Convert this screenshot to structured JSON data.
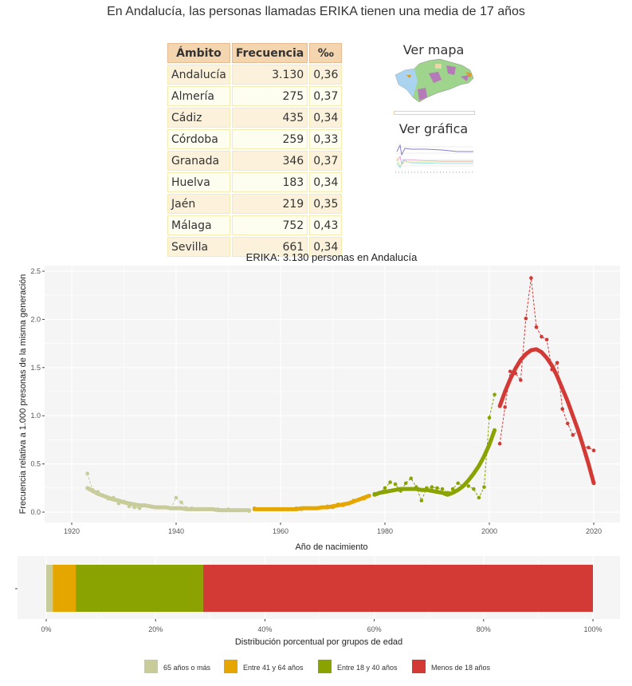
{
  "page": {
    "title": "En Andalucía, las personas llamadas ERIKA tienen una media de 17 años"
  },
  "table": {
    "headers": [
      "Ámbito",
      "Frecuencia",
      "‰"
    ],
    "rows": [
      [
        "Andalucía",
        "3.130",
        "0,36"
      ],
      [
        "Almería",
        "275",
        "0,37"
      ],
      [
        "Cádiz",
        "435",
        "0,34"
      ],
      [
        "Córdoba",
        "259",
        "0,33"
      ],
      [
        "Granada",
        "346",
        "0,37"
      ],
      [
        "Huelva",
        "183",
        "0,34"
      ],
      [
        "Jaén",
        "219",
        "0,35"
      ],
      [
        "Málaga",
        "752",
        "0,43"
      ],
      [
        "Sevilla",
        "661",
        "0,34"
      ]
    ]
  },
  "links": {
    "map_label": "Ver mapa",
    "chart_label": "Ver gráfica"
  },
  "chart_data": [
    {
      "type": "line",
      "title": "ERIKA: 3.130 personas en Andalucía",
      "xlabel": "Año de nacimiento",
      "ylabel": "Frecuencia relativa a 1.000 presonas de la misma generación",
      "xlim": [
        1914,
        2025
      ],
      "ylim": [
        -0.07,
        2.52
      ],
      "xticks": [
        1920,
        1940,
        1960,
        1980,
        2000,
        2020
      ],
      "yticks": [
        "0.0",
        "0.5",
        "1.0",
        "1.5",
        "2.0",
        "2.5"
      ],
      "grid": true,
      "start_year": 1923,
      "segments": [
        {
          "name": "65 años o más",
          "from": 1923,
          "to": 1954,
          "color": "#c8cc9a"
        },
        {
          "name": "Entre 41 y 64 años",
          "from": 1955,
          "to": 1977,
          "color": "#e5a600"
        },
        {
          "name": "Entre 18 y 40 años",
          "from": 1978,
          "to": 2001,
          "color": "#8aa300"
        },
        {
          "name": "Menos de 18 años",
          "from": 2002,
          "to": 2020,
          "color": "#d33a35"
        }
      ],
      "smooth": [
        0.25,
        0.22,
        0.19,
        0.17,
        0.15,
        0.13,
        0.12,
        0.1,
        0.09,
        0.08,
        0.07,
        0.07,
        0.06,
        0.05,
        0.05,
        0.05,
        0.04,
        0.04,
        0.04,
        0.03,
        0.03,
        0.03,
        0.03,
        0.03,
        0.03,
        0.02,
        0.02,
        0.02,
        0.02,
        0.02,
        0.02,
        0.02,
        0.03,
        0.03,
        0.03,
        0.03,
        0.03,
        0.03,
        0.03,
        0.03,
        0.03,
        0.04,
        0.04,
        0.04,
        0.04,
        0.05,
        0.05,
        0.06,
        0.07,
        0.08,
        0.09,
        0.11,
        0.13,
        0.15,
        0.17,
        0.18,
        0.2,
        0.21,
        0.22,
        0.23,
        0.24,
        0.24,
        0.24,
        0.24,
        0.23,
        0.23,
        0.22,
        0.21,
        0.2,
        0.18,
        0.2,
        0.23,
        0.27,
        0.33,
        0.4,
        0.48,
        0.58,
        0.7,
        0.85,
        1.1,
        1.25,
        1.38,
        1.49,
        1.58,
        1.64,
        1.68,
        1.69,
        1.66,
        1.6,
        1.52,
        1.41,
        1.28,
        1.15,
        1.0,
        0.85,
        0.68,
        0.5,
        0.3
      ],
      "observed": [
        0.4,
        0.23,
        0.21,
        0.17,
        0.14,
        0.15,
        0.09,
        0.11,
        0.06,
        0.05,
        0.04,
        0.07,
        0.06,
        0.05,
        0.05,
        0.05,
        0.04,
        0.15,
        0.1,
        0.04,
        0.04,
        0.03,
        0.03,
        0.03,
        0.03,
        0.03,
        0.02,
        0.03,
        0.02,
        0.02,
        0.02,
        0.01,
        0.04,
        0.03,
        0.03,
        0.03,
        0.03,
        0.03,
        0.03,
        0.03,
        0.04,
        0.03,
        0.04,
        0.04,
        0.04,
        0.05,
        0.06,
        0.05,
        0.08,
        0.07,
        0.09,
        0.12,
        0.13,
        0.14,
        0.17,
        0.19,
        0.2,
        0.25,
        0.31,
        0.29,
        0.22,
        0.3,
        0.35,
        0.26,
        0.12,
        0.25,
        0.26,
        0.25,
        0.24,
        0.2,
        0.24,
        0.3,
        0.27,
        0.27,
        0.24,
        0.15,
        0.26,
        0.98,
        1.22,
        0.71,
        1.09,
        1.46,
        1.44,
        1.37,
        2.01,
        2.43,
        1.92,
        1.82,
        1.79,
        1.48,
        1.55,
        1.07,
        0.92,
        0.8,
        0.84,
        0.68,
        0.67,
        0.64
      ]
    },
    {
      "type": "bar",
      "orientation": "horizontal-stacked",
      "xlabel": "Distribución porcentual por grupos de edad",
      "xticks": [
        "0%",
        "20%",
        "40%",
        "60%",
        "80%",
        "100%"
      ],
      "categories": [
        "65 años o más",
        "Entre 41 y 64 años",
        "Entre 18 y 40 años",
        "Menos de 18 años"
      ],
      "values": [
        1.2,
        4.2,
        23.3,
        71.3
      ],
      "colors": [
        "#c8cc9a",
        "#e5a600",
        "#8aa300",
        "#d33a35"
      ],
      "legend": "bottom"
    }
  ]
}
